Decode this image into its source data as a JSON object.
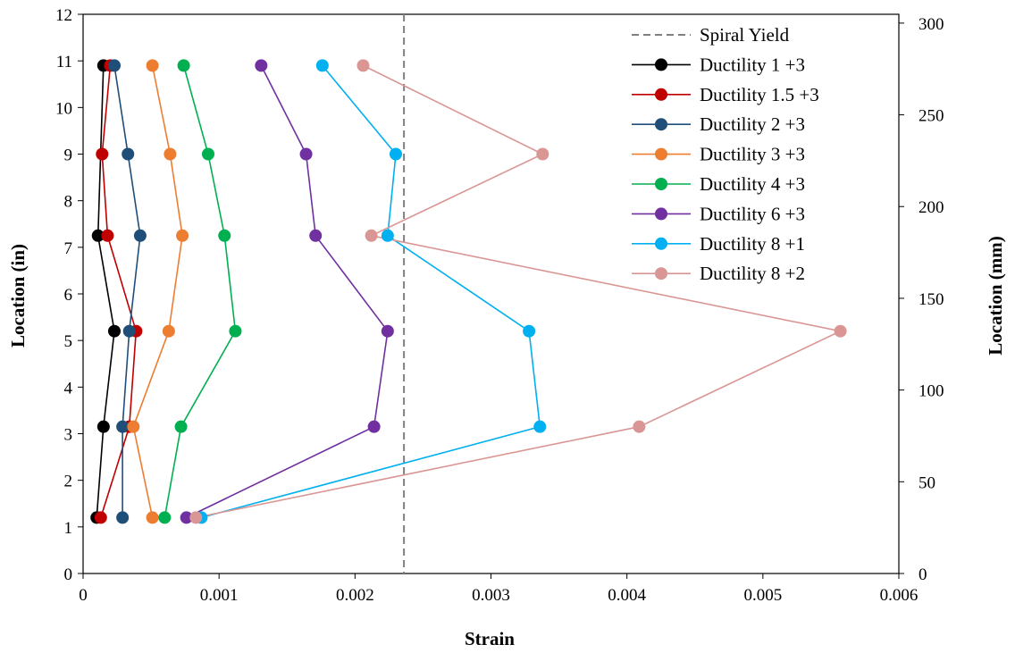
{
  "chart_data": {
    "type": "line",
    "xlabel": "Strain",
    "ylabel": "Location (in)",
    "y2label": "Location (mm)",
    "xlim": [
      0,
      0.006
    ],
    "ylim": [
      0,
      12
    ],
    "y2lim": [
      0,
      304.8
    ],
    "x_ticks": [
      "0",
      "0.001",
      "0.002",
      "0.003",
      "0.004",
      "0.005",
      "0.006"
    ],
    "y_ticks": [
      "0",
      "1",
      "2",
      "3",
      "4",
      "5",
      "6",
      "7",
      "8",
      "9",
      "10",
      "11",
      "12"
    ],
    "y2_ticks": [
      "0",
      "50",
      "100",
      "150",
      "200",
      "250",
      "300"
    ],
    "grid": false,
    "legend_position": "top-right",
    "reference_line": {
      "name": "Spiral Yield",
      "x": 0.00236,
      "color": "#808080",
      "style": "dashed"
    },
    "series": [
      {
        "name": "Ductility 1 +3",
        "color": "#000000",
        "points": [
          [
            0.0001,
            1.2
          ],
          [
            0.00015,
            3.15
          ],
          [
            0.00023,
            5.2
          ],
          [
            0.00011,
            7.25
          ],
          [
            0.00015,
            10.9
          ]
        ]
      },
      {
        "name": "Ductility 1.5 +3",
        "color": "#c00000",
        "points": [
          [
            0.00013,
            1.2
          ],
          [
            0.00034,
            3.15
          ],
          [
            0.00039,
            5.2
          ],
          [
            0.00018,
            7.25
          ],
          [
            0.00014,
            9.0
          ],
          [
            0.0002,
            10.9
          ]
        ]
      },
      {
        "name": "Ductility 2 +3",
        "color": "#1f4e79",
        "points": [
          [
            0.00029,
            1.2
          ],
          [
            0.00029,
            3.15
          ],
          [
            0.00034,
            5.2
          ],
          [
            0.00042,
            7.25
          ],
          [
            0.00033,
            9.0
          ],
          [
            0.00023,
            10.9
          ]
        ]
      },
      {
        "name": "Ductility 3 +3",
        "color": "#ed7d31",
        "points": [
          [
            0.00051,
            1.2
          ],
          [
            0.00037,
            3.15
          ],
          [
            0.00063,
            5.2
          ],
          [
            0.00073,
            7.25
          ],
          [
            0.00064,
            9.0
          ],
          [
            0.00051,
            10.9
          ]
        ]
      },
      {
        "name": "Ductility 4 +3",
        "color": "#00b050",
        "points": [
          [
            0.0006,
            1.2
          ],
          [
            0.00072,
            3.15
          ],
          [
            0.00112,
            5.2
          ],
          [
            0.00104,
            7.25
          ],
          [
            0.00092,
            9.0
          ],
          [
            0.00074,
            10.9
          ]
        ]
      },
      {
        "name": "Ductility 6 +3",
        "color": "#7030a0",
        "points": [
          [
            0.00076,
            1.2
          ],
          [
            0.00214,
            3.15
          ],
          [
            0.00224,
            5.2
          ],
          [
            0.00171,
            7.25
          ],
          [
            0.00164,
            9.0
          ],
          [
            0.00131,
            10.9
          ]
        ]
      },
      {
        "name": "Ductility 8 +1",
        "color": "#00b0f0",
        "points": [
          [
            0.00087,
            1.2
          ],
          [
            0.00336,
            3.15
          ],
          [
            0.00328,
            5.2
          ],
          [
            0.00224,
            7.25
          ],
          [
            0.0023,
            9.0
          ],
          [
            0.00176,
            10.9
          ]
        ]
      },
      {
        "name": "Ductility 8 +2",
        "color": "#d99694",
        "points": [
          [
            0.00083,
            1.2
          ],
          [
            0.00409,
            3.15
          ],
          [
            0.00557,
            5.2
          ],
          [
            0.00212,
            7.25
          ],
          [
            0.00338,
            9.0
          ],
          [
            0.00206,
            10.9
          ]
        ]
      }
    ]
  }
}
